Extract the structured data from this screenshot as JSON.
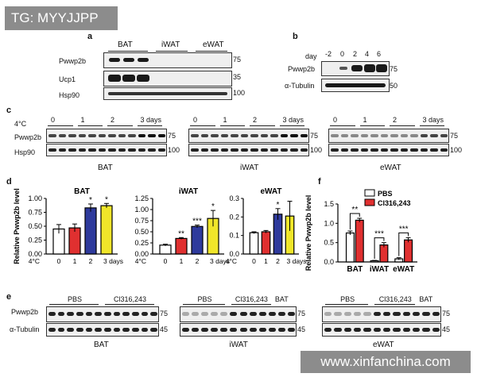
{
  "watermark_top": "TG: MYYJJPP",
  "watermark_bottom": "www.xinfanchina.com",
  "panel_labels": [
    "a",
    "b",
    "c",
    "d",
    "e",
    "f"
  ],
  "panel_a": {
    "groups": [
      "BAT",
      "iWAT",
      "eWAT"
    ],
    "rows": [
      "Pwwp2b",
      "Ucp1",
      "Hsp90"
    ],
    "markers": [
      "75",
      "35",
      "100"
    ]
  },
  "panel_b": {
    "day_label": "day",
    "days": [
      "-2",
      "0",
      "2",
      "4",
      "6"
    ],
    "rows": [
      "Pwwp2b",
      "α-Tubulin"
    ],
    "markers": [
      "75",
      "50"
    ]
  },
  "panel_c": {
    "temp_label": "4°C",
    "days": [
      "0",
      "1",
      "2",
      "3 days"
    ],
    "rows": [
      "Pwwp2b",
      "Hsp90"
    ],
    "markers": [
      "75",
      "100"
    ],
    "tissues": [
      "BAT",
      "iWAT",
      "eWAT"
    ]
  },
  "panel_e": {
    "rows": [
      "Pwwp2b",
      "α-Tubulin"
    ],
    "markers": [
      "75",
      "45"
    ],
    "pbs": "PBS",
    "cl": "Cl316,243",
    "bat": "BAT",
    "tissues": [
      "BAT",
      "iWAT",
      "eWAT"
    ]
  },
  "chart_data": [
    {
      "type": "bar",
      "title": "BAT",
      "ylabel": "Relative Pwwp2b level",
      "categories": [
        "0",
        "1",
        "2",
        "3 days"
      ],
      "xprefix": "4°C",
      "values": [
        0.45,
        0.47,
        0.83,
        0.87
      ],
      "errors": [
        0.08,
        0.07,
        0.07,
        0.04
      ],
      "colors": [
        "#ffffff",
        "#e03030",
        "#2e3a9c",
        "#f0e62a"
      ],
      "sig": [
        "",
        "",
        "*",
        "*"
      ],
      "ylim": [
        0,
        1.0
      ],
      "yticks": [
        "0.00",
        "0.25",
        "0.50",
        "0.75",
        "1.00"
      ]
    },
    {
      "type": "bar",
      "title": "iWAT",
      "ylabel": "",
      "categories": [
        "0",
        "1",
        "2",
        "3 days"
      ],
      "xprefix": "4°C",
      "values": [
        0.2,
        0.35,
        0.62,
        0.8
      ],
      "errors": [
        0.02,
        0.02,
        0.03,
        0.18
      ],
      "colors": [
        "#ffffff",
        "#e03030",
        "#2e3a9c",
        "#f0e62a"
      ],
      "sig": [
        "",
        "**",
        "***",
        "*"
      ],
      "ylim": [
        0,
        1.25
      ],
      "yticks": [
        "0.00",
        "0.25",
        "0.50",
        "0.75",
        "1.00",
        "1.25"
      ]
    },
    {
      "type": "bar",
      "title": "eWAT",
      "ylabel": "",
      "categories": [
        "0",
        "1",
        "2",
        "3 days"
      ],
      "xprefix": "4°C",
      "values": [
        0.115,
        0.12,
        0.215,
        0.205
      ],
      "errors": [
        0.005,
        0.007,
        0.03,
        0.08
      ],
      "colors": [
        "#ffffff",
        "#e03030",
        "#2e3a9c",
        "#f0e62a"
      ],
      "sig": [
        "",
        "",
        "*",
        ""
      ],
      "ylim": [
        0,
        0.3
      ],
      "yticks": [
        "0.0",
        "0.1",
        "0.2",
        "0.3"
      ]
    },
    {
      "type": "bar",
      "title": "",
      "ylabel": "Relative Pwwp2b level",
      "categories": [
        "BAT",
        "iWAT",
        "eWAT"
      ],
      "series": [
        {
          "name": "PBS",
          "values": [
            0.75,
            0.03,
            0.08
          ],
          "errors": [
            0.05,
            0.01,
            0.03
          ],
          "color": "#ffffff"
        },
        {
          "name": "Cl316,243",
          "values": [
            1.08,
            0.44,
            0.57
          ],
          "errors": [
            0.05,
            0.06,
            0.06
          ],
          "color": "#e03030"
        }
      ],
      "sig": [
        "**",
        "***",
        "***"
      ],
      "ylim": [
        0,
        1.5
      ],
      "yticks": [
        "0.0",
        "0.5",
        "1.0",
        "1.5"
      ],
      "legend": "top-right"
    }
  ]
}
